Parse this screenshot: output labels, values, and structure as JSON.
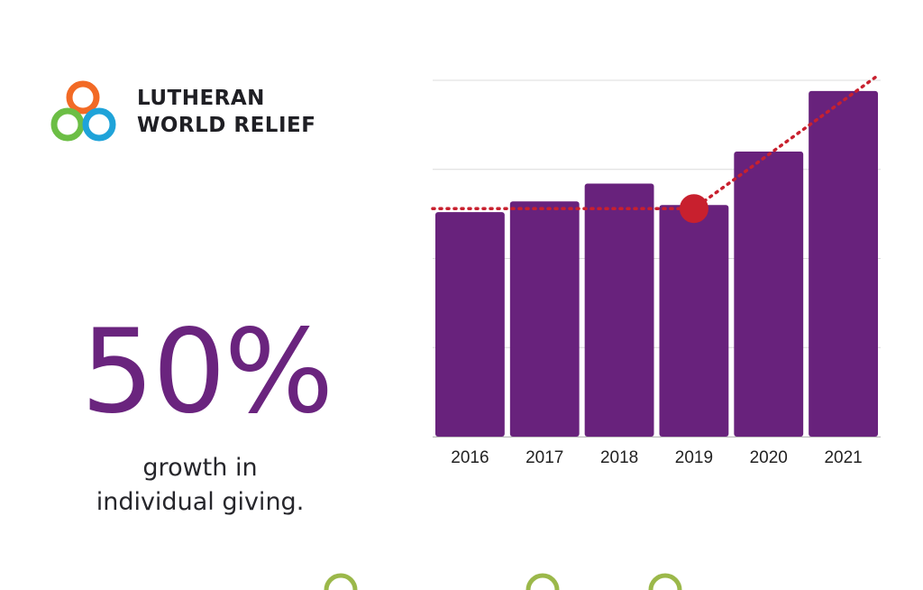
{
  "logo": {
    "line1": "LUTHERAN",
    "line2": "WORLD RELIEF",
    "colors": [
      "#f26a25",
      "#6cbe45",
      "#1fa3d9"
    ]
  },
  "stat": {
    "value": "50%",
    "caption_line1": "growth in",
    "caption_line2": "individual giving."
  },
  "chart_data": {
    "type": "bar",
    "categories": [
      "2016",
      "2017",
      "2018",
      "2019",
      "2020",
      "2021"
    ],
    "values": [
      63,
      66,
      71,
      65,
      80,
      97
    ],
    "ylim": [
      0,
      100
    ],
    "grid": true,
    "bar_color": "#68227c",
    "trend": {
      "color": "#c8202e",
      "baseline_value": 64,
      "marker_category": "2019",
      "end_value": 101
    }
  },
  "colors": {
    "accent": "#6a247e",
    "text": "#26262b",
    "footer_green": "#9bb84a"
  }
}
